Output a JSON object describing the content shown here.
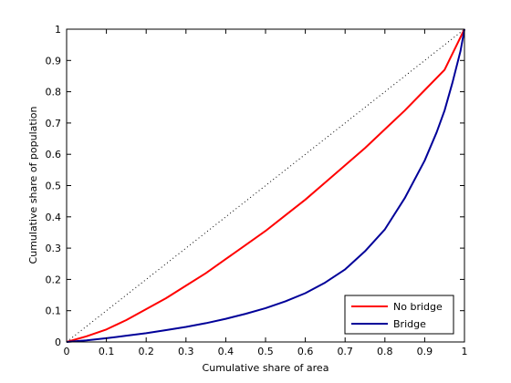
{
  "chart_data": {
    "type": "line",
    "title": "",
    "xlabel": "Cumulative share of area",
    "ylabel": "Cumulative share of population",
    "xlim": [
      0,
      1
    ],
    "ylim": [
      0,
      1
    ],
    "xticks": [
      "0",
      "0.1",
      "0.2",
      "0.3",
      "0.4",
      "0.5",
      "0.6",
      "0.7",
      "0.8",
      "0.9",
      "1"
    ],
    "yticks": [
      "0",
      "0.1",
      "0.2",
      "0.3",
      "0.4",
      "0.5",
      "0.6",
      "0.7",
      "0.8",
      "0.9",
      "1"
    ],
    "grid": false,
    "legend_position": "bottom-right",
    "reference_line": {
      "style": "dotted",
      "color": "#000000",
      "x": [
        0,
        1
      ],
      "y": [
        0,
        1
      ]
    },
    "series": [
      {
        "name": "No bridge",
        "color": "#ff0000",
        "x": [
          0,
          0.05,
          0.1,
          0.15,
          0.2,
          0.25,
          0.3,
          0.35,
          0.4,
          0.45,
          0.5,
          0.55,
          0.6,
          0.65,
          0.7,
          0.75,
          0.8,
          0.85,
          0.9,
          0.95,
          1
        ],
        "y": [
          0,
          0.018,
          0.04,
          0.07,
          0.105,
          0.14,
          0.18,
          0.22,
          0.265,
          0.31,
          0.355,
          0.405,
          0.455,
          0.51,
          0.565,
          0.62,
          0.68,
          0.74,
          0.805,
          0.87,
          1.0
        ]
      },
      {
        "name": "Bridge",
        "color": "#000099",
        "x": [
          0,
          0.05,
          0.1,
          0.15,
          0.2,
          0.25,
          0.3,
          0.35,
          0.4,
          0.45,
          0.5,
          0.55,
          0.6,
          0.65,
          0.7,
          0.75,
          0.8,
          0.85,
          0.9,
          0.93,
          0.95,
          0.97,
          0.99,
          1
        ],
        "y": [
          0,
          0.005,
          0.012,
          0.02,
          0.028,
          0.038,
          0.048,
          0.06,
          0.074,
          0.09,
          0.108,
          0.13,
          0.156,
          0.19,
          0.232,
          0.29,
          0.36,
          0.46,
          0.58,
          0.67,
          0.74,
          0.83,
          0.93,
          1.0
        ]
      }
    ]
  }
}
